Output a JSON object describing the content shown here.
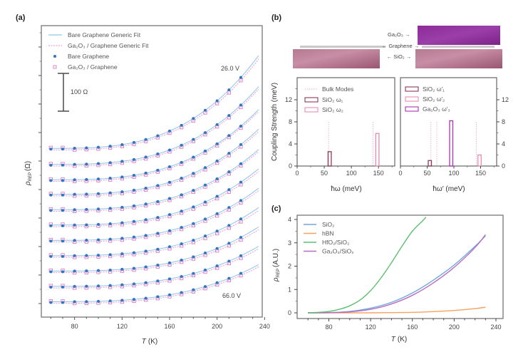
{
  "chart_data": [
    {
      "panel": "(a)",
      "type": "line",
      "xlabel": "T (K)",
      "ylabel": "ρ_REP (Ω)",
      "xlim": [
        52,
        238
      ],
      "xticks": [
        80,
        120,
        160,
        200,
        240
      ],
      "ylim_ohm": [
        -30,
        730
      ],
      "yticks_labeled": false,
      "scale_bar_label": "100 Ω",
      "scale_bar_ohm": 100,
      "annotations": {
        "top": "26.0 V",
        "bottom": "66.0 V"
      },
      "legend": [
        {
          "label": "Bare Graphene Generic Fit",
          "kind": "line",
          "color": "#7ab8e6"
        },
        {
          "label": "Ga₂O₃ / Graphene Generic Fit",
          "kind": "dashed",
          "color": "#e08bd0"
        },
        {
          "label": "Bare Graphene",
          "kind": "dot",
          "color": "#2a77c2"
        },
        {
          "label": "Ga₂O₃ / Graphene",
          "kind": "square",
          "color": "#d57fc6"
        }
      ],
      "legend_position": "top-left",
      "T_points": [
        60,
        70,
        80,
        90,
        100,
        110,
        120,
        130,
        140,
        150,
        160,
        170,
        180,
        190,
        200,
        210,
        220
      ],
      "T_fit_max": 235,
      "curves": [
        {
          "gate": "26.0 V",
          "offset": 410,
          "bare_A": 185,
          "ga_A": 195
        },
        {
          "gate": "",
          "offset": 368,
          "bare_A": 155,
          "ga_A": 165
        },
        {
          "gate": "",
          "offset": 328,
          "bare_A": 140,
          "ga_A": 150
        },
        {
          "gate": "",
          "offset": 290,
          "bare_A": 130,
          "ga_A": 138
        },
        {
          "gate": "",
          "offset": 250,
          "bare_A": 120,
          "ga_A": 128
        },
        {
          "gate": "",
          "offset": 210,
          "bare_A": 112,
          "ga_A": 118
        },
        {
          "gate": "",
          "offset": 170,
          "bare_A": 104,
          "ga_A": 110
        },
        {
          "gate": "",
          "offset": 130,
          "bare_A": 96,
          "ga_A": 100
        },
        {
          "gate": "",
          "offset": 90,
          "bare_A": 88,
          "ga_A": 92
        },
        {
          "gate": "",
          "offset": 50,
          "bare_A": 80,
          "ga_A": 84
        },
        {
          "gate": "66.0 V",
          "offset": 10,
          "bare_A": 74,
          "ga_A": 78
        }
      ],
      "curve_model": "rho = offset + A * ((T-60)/160)^3 for T>60"
    },
    {
      "panel": "(b)",
      "type": "bar",
      "schematic": {
        "labels": {
          "ga2o3": "Ga₂O₃",
          "graphene": "Graphene",
          "sio2": "SiO₂"
        },
        "colors": {
          "ga2o3": "#8a2f9a",
          "sio2": "#a9627f",
          "graphene": "#c8c8c8"
        }
      },
      "ylabel": "Coupling Strength (meV)",
      "ylim": [
        0,
        16
      ],
      "yticks": [
        0,
        4,
        8,
        12
      ],
      "subplots": [
        {
          "xlabel": "ħω (meV)",
          "xlim": [
            0,
            180
          ],
          "xticks": [
            0,
            50,
            100,
            150
          ],
          "bulk_modes": [
            58,
            140
          ],
          "bars": [
            {
              "label": "SiO₂ ω₁",
              "x": 60,
              "value": 2.6,
              "color": "#8c3a5a"
            },
            {
              "label": "SiO₂ ω₂",
              "x": 148,
              "value": 5.9,
              "color": "#e78ab0"
            }
          ],
          "legend": [
            "Bulk Modes",
            "SiO₂ ω₁",
            "SiO₂ ω₂"
          ]
        },
        {
          "xlabel": "ħω′ (meV)",
          "xlim": [
            0,
            180
          ],
          "xticks": [
            0,
            50,
            100,
            150
          ],
          "bulk_modes": [
            57,
            68,
            142
          ],
          "bars": [
            {
              "label": "SiO₂ ω′₁",
              "x": 55,
              "value": 1.0,
              "color": "#8c3a5a"
            },
            {
              "label": "Ga₂O₃ ω′₃",
              "x": 95,
              "value": 8.2,
              "color": "#a833b0"
            },
            {
              "label": "SiO₂ ω′₂",
              "x": 148,
              "value": 2.0,
              "color": "#e78ab0"
            }
          ],
          "legend": [
            "SiO₂ ω′₁",
            "SiO₂ ω′₂",
            "Ga₂O₃ ω′₃"
          ]
        }
      ]
    },
    {
      "panel": "(c)",
      "type": "line",
      "xlabel": "T (K)",
      "ylabel": "ρ_REP (A.U.)",
      "xlim": [
        50,
        242
      ],
      "ylim": [
        -0.1,
        4.1
      ],
      "xticks": [
        80,
        120,
        160,
        200,
        240
      ],
      "yticks": [
        0,
        1,
        2,
        3,
        4
      ],
      "legend_position": "top-left",
      "series": [
        {
          "name": "SiO₂",
          "color": "#6fa8dc",
          "x": [
            60,
            80,
            100,
            120,
            140,
            160,
            180,
            200,
            220,
            230
          ],
          "values": [
            0,
            0.01,
            0.06,
            0.2,
            0.45,
            0.85,
            1.4,
            2.05,
            2.85,
            3.3
          ]
        },
        {
          "name": "hBN",
          "color": "#f4a261",
          "x": [
            60,
            80,
            100,
            120,
            140,
            160,
            180,
            200,
            220,
            230
          ],
          "values": [
            0,
            0,
            0,
            0,
            0.01,
            0.02,
            0.05,
            0.1,
            0.18,
            0.24
          ]
        },
        {
          "name": "HfO₂/SiO₂",
          "color": "#5cbf72",
          "x": [
            60,
            70,
            80,
            90,
            100,
            110,
            120,
            130,
            140,
            150,
            160,
            170,
            173
          ],
          "values": [
            0,
            0.02,
            0.06,
            0.15,
            0.3,
            0.55,
            0.95,
            1.5,
            2.15,
            2.85,
            3.5,
            3.95,
            4.1
          ]
        },
        {
          "name": "Ga₂O₃/SiO₂",
          "color": "#b96bc4",
          "x": [
            60,
            80,
            100,
            120,
            140,
            160,
            180,
            200,
            220,
            230
          ],
          "values": [
            0,
            0.005,
            0.04,
            0.15,
            0.38,
            0.75,
            1.28,
            1.95,
            2.8,
            3.35
          ]
        }
      ]
    }
  ]
}
